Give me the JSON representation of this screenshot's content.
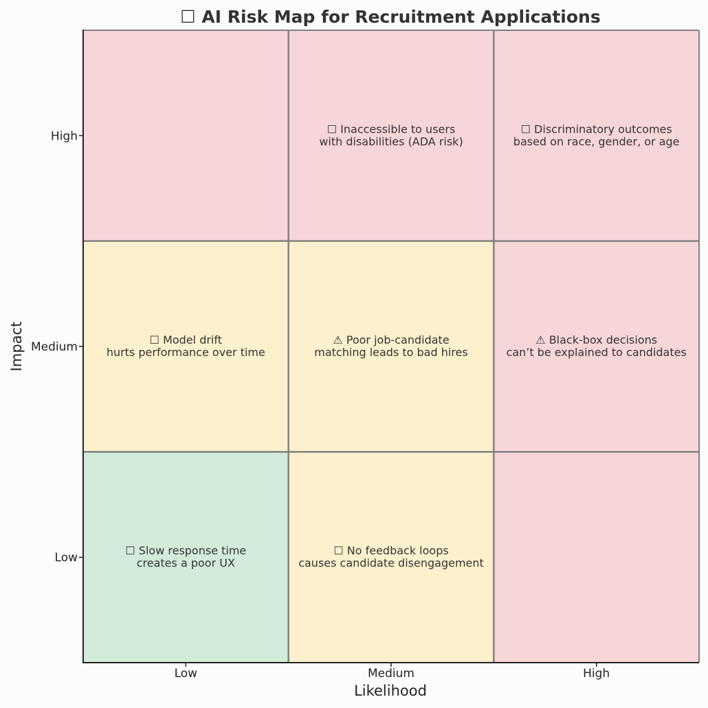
{
  "chart_data": {
    "type": "heatmap",
    "title": "☐ AI Risk Map for Recruitment Applications",
    "xlabel": "Likelihood",
    "ylabel": "Impact",
    "x_categories": [
      "Low",
      "Medium",
      "High"
    ],
    "y_categories": [
      "Low",
      "Medium",
      "High"
    ],
    "colors": {
      "low": "#d3ebdb",
      "medium": "#fdf0cd",
      "high": "#f7d6da",
      "grid": "#808080"
    },
    "cells": [
      {
        "likelihood": "Low",
        "impact": "High",
        "level": "high",
        "lines": []
      },
      {
        "likelihood": "Medium",
        "impact": "High",
        "level": "high",
        "lines": [
          "☐ Inaccessible to users",
          "with disabilities (ADA risk)"
        ]
      },
      {
        "likelihood": "High",
        "impact": "High",
        "level": "high",
        "lines": [
          "☐ Discriminatory outcomes",
          "based on race, gender, or age"
        ]
      },
      {
        "likelihood": "Low",
        "impact": "Medium",
        "level": "medium",
        "lines": [
          "☐ Model drift",
          "hurts performance over time"
        ]
      },
      {
        "likelihood": "Medium",
        "impact": "Medium",
        "level": "medium",
        "lines": [
          "⚠ Poor job-candidate",
          "matching leads to bad hires"
        ]
      },
      {
        "likelihood": "High",
        "impact": "Medium",
        "level": "high",
        "lines": [
          "⚠ Black-box decisions",
          "can’t be explained to candidates"
        ]
      },
      {
        "likelihood": "Low",
        "impact": "Low",
        "level": "low",
        "lines": [
          "☐ Slow response time",
          "creates a poor UX"
        ]
      },
      {
        "likelihood": "Medium",
        "impact": "Low",
        "level": "medium",
        "lines": [
          "☐ No feedback loops",
          "causes candidate disengagement"
        ]
      },
      {
        "likelihood": "High",
        "impact": "Low",
        "level": "high",
        "lines": []
      }
    ]
  }
}
